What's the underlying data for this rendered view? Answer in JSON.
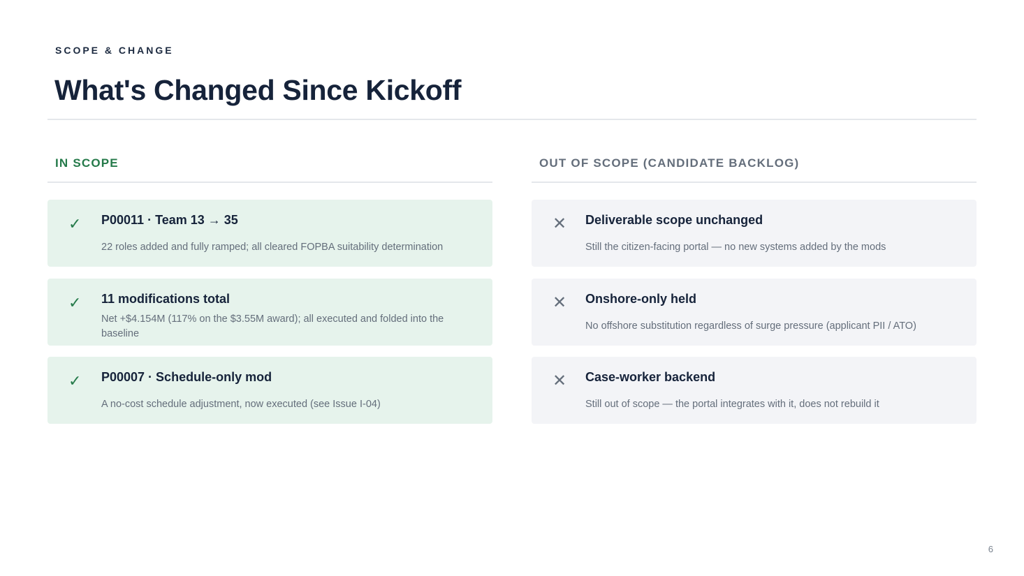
{
  "header": {
    "eyebrow": "SCOPE & CHANGE",
    "title": "What's Changed Since Kickoff"
  },
  "in_scope": {
    "heading": "IN SCOPE",
    "mark_icon": "check-icon",
    "accent_color": "#257a4a",
    "items": [
      {
        "title": "P00011 · Team 13 → 35",
        "description": "22 roles added and fully ramped; all cleared FOPBA suitability determination"
      },
      {
        "title": "11 modifications total",
        "description": "Net +$4.154M (117% on the $3.55M award); all executed and folded into the baseline"
      },
      {
        "title": "P00007 · Schedule-only mod",
        "description": "A no-cost schedule adjustment, now executed (see Issue I-04)"
      }
    ]
  },
  "out_of_scope": {
    "heading": "OUT OF SCOPE (CANDIDATE BACKLOG)",
    "mark_icon": "x-icon",
    "accent_color": "#646e7b",
    "items": [
      {
        "title": "Deliverable scope unchanged",
        "description": "Still the citizen-facing portal — no new systems added by the mods"
      },
      {
        "title": "Onshore-only held",
        "description": "No offshore substitution regardless of surge pressure (applicant PII / ATO)"
      },
      {
        "title": "Case-worker backend",
        "description": "Still out of scope — the portal integrates with it, does not rebuild it"
      }
    ]
  },
  "footer": {
    "page_number": "6"
  }
}
